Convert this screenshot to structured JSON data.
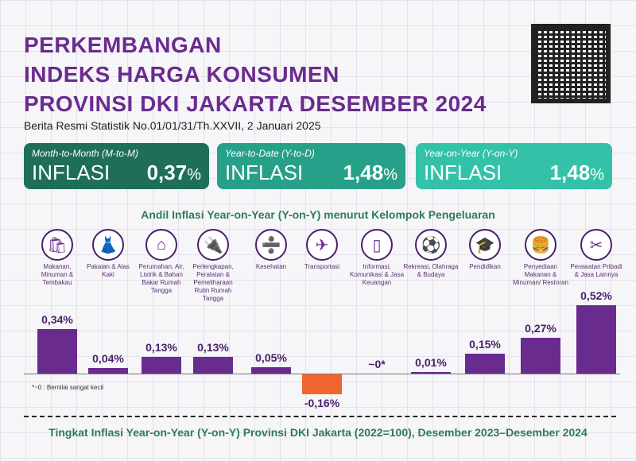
{
  "header": {
    "title_lines": [
      "PERKEMBANGAN",
      "INDEKS HARGA KONSUMEN",
      "PROVINSI DKI JAKARTA DESEMBER 2024"
    ],
    "subtitle": "Berita Resmi Statistik No.01/01/31/Th.XXVII, 2 Januari 2025"
  },
  "cards": [
    {
      "label": "Month-to-Month (M-to-M)",
      "word": "INFLASI",
      "value": "0,37",
      "unit": "%",
      "color": "#1e6e5a"
    },
    {
      "label": "Year-to-Date (Y-to-D)",
      "word": "INFLASI",
      "value": "1,48",
      "unit": "%",
      "color": "#27a08a"
    },
    {
      "label": "Year-on-Year (Y-on-Y)",
      "word": "INFLASI",
      "value": "1,48",
      "unit": "%",
      "color": "#33c2a8"
    }
  ],
  "chart_data": {
    "type": "bar",
    "title": "Andil Inflasi Year-on-Year (Y-on-Y) menurut Kelompok Pengeluaran",
    "categories": [
      "Makanan, Minuman & Tembakau",
      "Pakaian & Alas Kaki",
      "Perumahan, Air, Listrik & Bahan Bakar Rumah Tangga",
      "Perlengkapan, Peralatan & Pemeliharaan Rutin Rumah Tangga",
      "Kesehatan",
      "Transportasi",
      "Informasi, Komunikasi & Jasa Keuangan",
      "Rekreasi, Olahraga & Budaya",
      "Pendidikan",
      "Penyediaan Makanan & Minuman/ Restoran",
      "Perawatan Pribadi & Jasa Lainnya"
    ],
    "icons": [
      "grocery-bag-icon",
      "dress-icon",
      "house-icon",
      "plug-icon",
      "medical-kit-icon",
      "airplane-icon",
      "smartphone-icon",
      "soccer-player-icon",
      "graduation-cap-icon",
      "fast-food-icon",
      "scissors-comb-icon"
    ],
    "glyphs": [
      "🛍",
      "👗",
      "⌂",
      "🔌",
      "➗",
      "✈",
      "▯",
      "⚽",
      "🎓",
      "🍔",
      "✂"
    ],
    "values": [
      0.34,
      0.04,
      0.13,
      0.13,
      0.05,
      -0.16,
      0,
      0.01,
      0.15,
      0.27,
      0.52
    ],
    "labels": [
      "0,34%",
      "0,04%",
      "0,13%",
      "0,13%",
      "0,05%",
      "-0,16%",
      "~0*",
      "0,01%",
      "0,15%",
      "0,27%",
      "0,52%"
    ],
    "unit": "%",
    "bar_color": "#6a2b8f",
    "negative_color": "#f0642d"
  },
  "note": "*~0 : Bernilai sangat kecil",
  "footer": "Tingkat Inflasi Year-on-Year (Y-on-Y) Provinsi DKI Jakarta (2022=100), Desember 2023–Desember 2024"
}
